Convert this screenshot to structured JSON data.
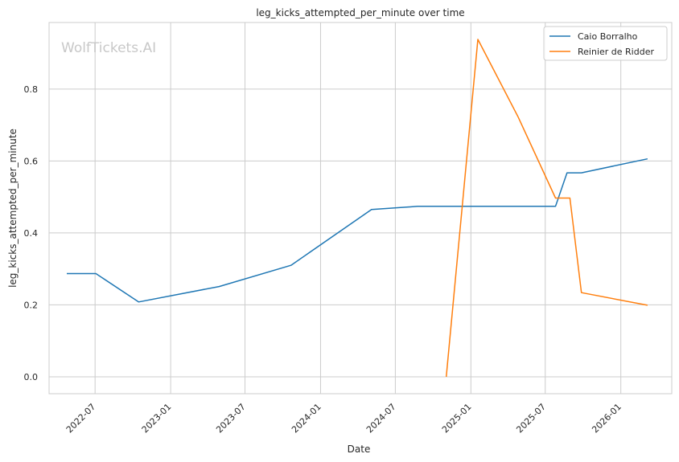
{
  "chart_data": {
    "type": "line",
    "title": "leg_kicks_attempted_per_minute over time",
    "xlabel": "Date",
    "ylabel": "leg_kicks_attempted_per_minute",
    "watermark": "WolfTickets.AI",
    "x_ticks": [
      "2022-07",
      "2023-01",
      "2023-07",
      "2024-01",
      "2024-07",
      "2025-01",
      "2025-07",
      "2026-01"
    ],
    "y_ticks": [
      "0.0",
      "0.2",
      "0.4",
      "0.6",
      "0.8"
    ],
    "xlim": [
      "2022-03-11",
      "2026-05-05"
    ],
    "ylim": [
      -0.047,
      0.985
    ],
    "grid": true,
    "legend_position": "top-right",
    "series": [
      {
        "name": "Caio Borralho",
        "color": "#1f77b4",
        "points": [
          {
            "x": "2022-04-23",
            "y": 0.287
          },
          {
            "x": "2022-07-03",
            "y": 0.287
          },
          {
            "x": "2022-10-15",
            "y": 0.208
          },
          {
            "x": "2023-04-29",
            "y": 0.251
          },
          {
            "x": "2023-10-21",
            "y": 0.31
          },
          {
            "x": "2024-05-04",
            "y": 0.465
          },
          {
            "x": "2024-08-24",
            "y": 0.474
          },
          {
            "x": "2025-07-26",
            "y": 0.474
          },
          {
            "x": "2025-08-23",
            "y": 0.567
          },
          {
            "x": "2025-09-27",
            "y": 0.567
          },
          {
            "x": "2026-03-07",
            "y": 0.606
          }
        ]
      },
      {
        "name": "Reinier de Ridder",
        "color": "#ff7f0e",
        "points": [
          {
            "x": "2024-11-02",
            "y": 0.0
          },
          {
            "x": "2025-01-18",
            "y": 0.938
          },
          {
            "x": "2025-04-26",
            "y": 0.722
          },
          {
            "x": "2025-07-26",
            "y": 0.497
          },
          {
            "x": "2025-08-30",
            "y": 0.497
          },
          {
            "x": "2025-09-27",
            "y": 0.234
          },
          {
            "x": "2026-03-07",
            "y": 0.199
          }
        ]
      }
    ]
  }
}
